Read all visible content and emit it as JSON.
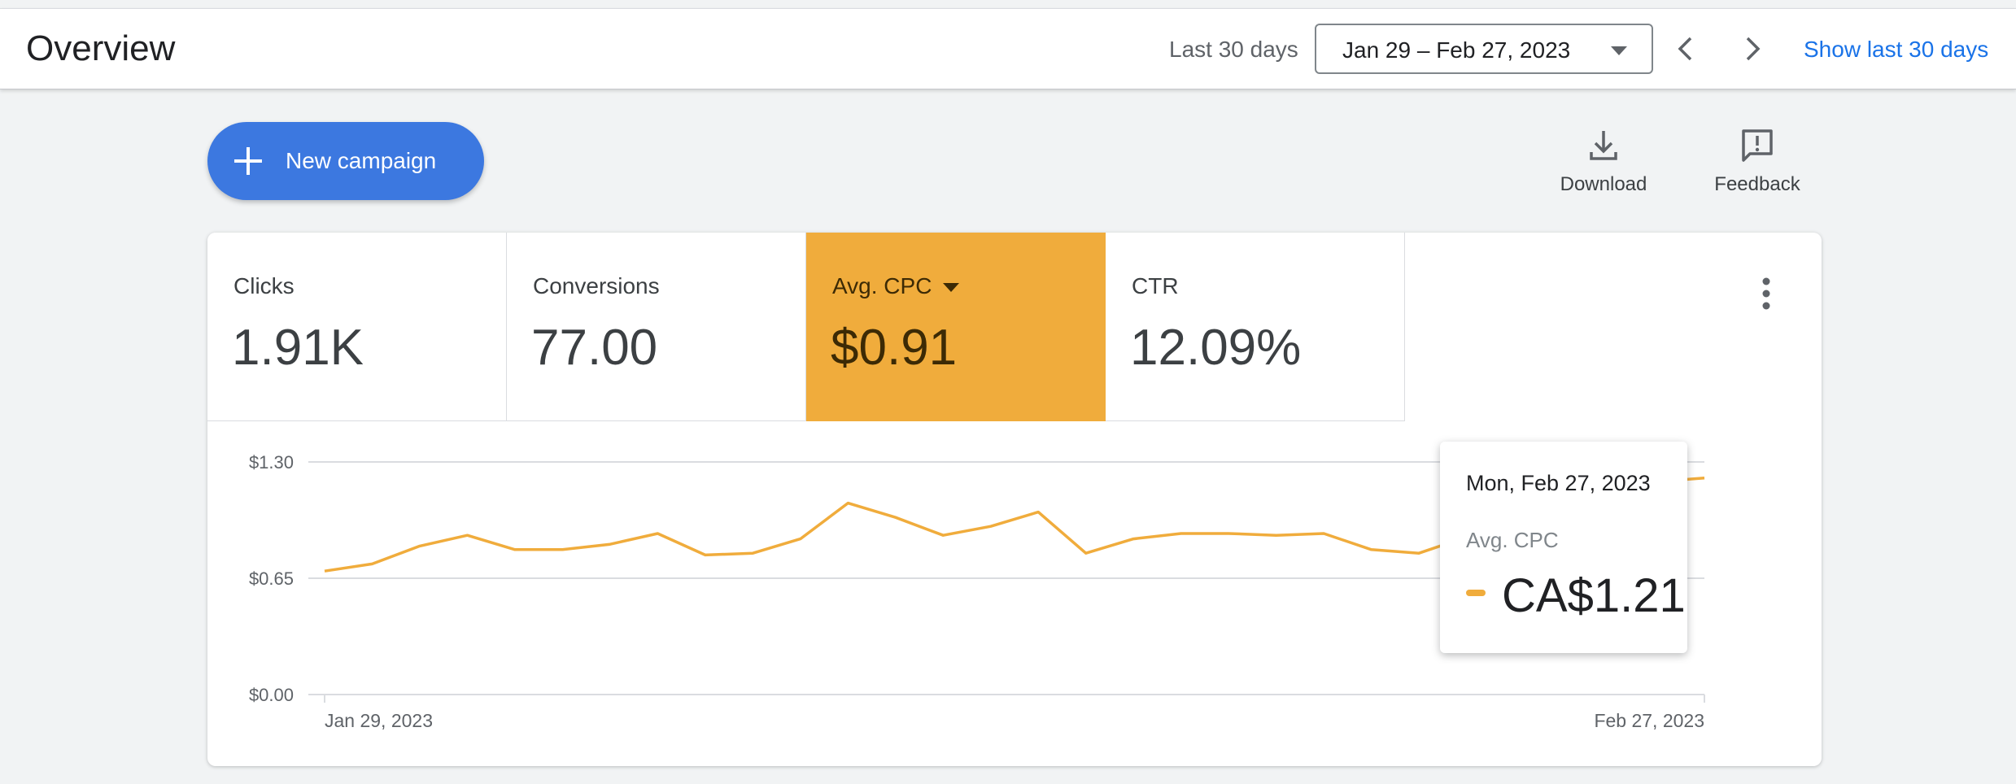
{
  "header": {
    "title": "Overview",
    "range_label": "Last 30 days",
    "date_range": "Jan 29 – Feb 27, 2023",
    "prev_icon": "chevron-left-icon",
    "next_icon": "chevron-right-icon",
    "show_link": "Show last 30 days"
  },
  "toolbar": {
    "new_campaign_label": "New campaign",
    "download_label": "Download",
    "feedback_label": "Feedback"
  },
  "metrics": [
    {
      "name": "Clicks",
      "value": "1.91K",
      "active": false
    },
    {
      "name": "Conversions",
      "value": "77.00",
      "active": false
    },
    {
      "name": "Avg. CPC",
      "value": "$0.91",
      "active": true
    },
    {
      "name": "CTR",
      "value": "12.09%",
      "active": false
    }
  ],
  "colors": {
    "accent": "#f0ac3c",
    "primary": "#3c78e0",
    "link": "#1a73e8"
  },
  "chart_data": {
    "type": "line",
    "y_ticks": [
      "$1.30",
      "$0.65",
      "$0.00"
    ],
    "ylim": [
      0,
      1.3
    ],
    "x_tick_labels": [
      "Jan 29, 2023",
      "Feb 27, 2023"
    ],
    "grid": true,
    "series": [
      {
        "color": "#f0ac3c",
        "x": [
          "Jan 29",
          "Jan 30",
          "Jan 31",
          "Feb 1",
          "Feb 2",
          "Feb 3",
          "Feb 4",
          "Feb 5",
          "Feb 6",
          "Feb 7",
          "Feb 8",
          "Feb 9",
          "Feb 10",
          "Feb 11",
          "Feb 12",
          "Feb 13",
          "Feb 14",
          "Feb 15",
          "Feb 16",
          "Feb 17",
          "Feb 18",
          "Feb 19",
          "Feb 20",
          "Feb 21",
          "Feb 22",
          "Feb 23",
          "Feb 24",
          "Feb 25",
          "Feb 26",
          "Feb 27"
        ],
        "values": [
          0.69,
          0.73,
          0.83,
          0.89,
          0.81,
          0.81,
          0.84,
          0.9,
          0.78,
          0.79,
          0.87,
          1.07,
          0.99,
          0.89,
          0.94,
          1.02,
          0.79,
          0.87,
          0.9,
          0.9,
          0.89,
          0.9,
          0.81,
          0.79,
          0.88,
          1.0,
          1.08,
          1.15,
          1.19,
          1.21
        ]
      }
    ]
  },
  "tooltip": {
    "date": "Mon, Feb 27, 2023",
    "metric": "Avg. CPC",
    "value": "CA$1.21"
  }
}
